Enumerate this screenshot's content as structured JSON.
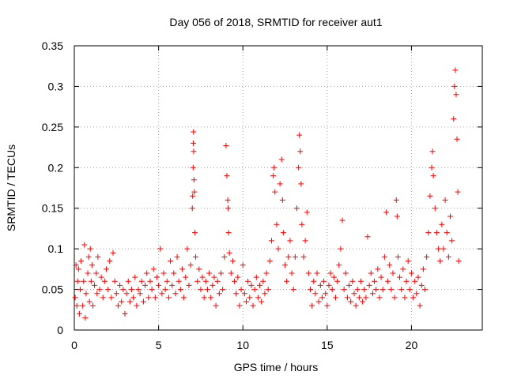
{
  "chart_data": {
    "type": "scatter",
    "title": "Day 056 of 2018, SRMTID for receiver aut1",
    "xlabel": "GPS time / hours",
    "ylabel": "SRMTID / TECUs",
    "xlim": [
      0,
      24.2
    ],
    "ylim": [
      0,
      0.35
    ],
    "xticks": [
      0,
      5,
      10,
      15,
      20
    ],
    "xtick_labels": [
      "0",
      "5",
      "10",
      "15",
      "20"
    ],
    "yticks": [
      0,
      0.05,
      0.1,
      0.15,
      0.2,
      0.25,
      0.3,
      0.35
    ],
    "ytick_labels": [
      "0",
      "0.05",
      "0.1",
      "0.15",
      "0.2",
      "0.25",
      "0.3",
      "0.35"
    ],
    "grid": true,
    "marker": "+",
    "color": "#ff0000",
    "series": [
      {
        "name": "aut1",
        "points": [
          [
            0.05,
            0.04
          ],
          [
            0.1,
            0.08
          ],
          [
            0.15,
            0.03
          ],
          [
            0.2,
            0.06
          ],
          [
            0.25,
            0.075
          ],
          [
            0.3,
            0.02
          ],
          [
            0.35,
            0.05
          ],
          [
            0.4,
            0.085
          ],
          [
            0.5,
            0.03
          ],
          [
            0.55,
            0.06
          ],
          [
            0.6,
            0.105
          ],
          [
            0.65,
            0.015
          ],
          [
            0.7,
            0.045
          ],
          [
            0.8,
            0.07
          ],
          [
            0.85,
            0.09
          ],
          [
            0.9,
            0.035
          ],
          [
            0.95,
            0.1
          ],
          [
            1.0,
            0.06
          ],
          [
            1.05,
            0.08
          ],
          [
            1.1,
            0.03
          ],
          [
            1.2,
            0.055
          ],
          [
            1.3,
            0.07
          ],
          [
            1.35,
            0.045
          ],
          [
            1.4,
            0.09
          ],
          [
            1.5,
            0.05
          ],
          [
            1.6,
            0.065
          ],
          [
            1.7,
            0.04
          ],
          [
            1.8,
            0.06
          ],
          [
            1.9,
            0.075
          ],
          [
            2.0,
            0.05
          ],
          [
            2.1,
            0.085
          ],
          [
            2.2,
            0.04
          ],
          [
            2.3,
            0.095
          ],
          [
            2.4,
            0.06
          ],
          [
            2.5,
            0.045
          ],
          [
            2.6,
            0.03
          ],
          [
            2.7,
            0.055
          ],
          [
            2.8,
            0.035
          ],
          [
            2.9,
            0.05
          ],
          [
            3.0,
            0.02
          ],
          [
            3.1,
            0.045
          ],
          [
            3.2,
            0.06
          ],
          [
            3.3,
            0.035
          ],
          [
            3.4,
            0.05
          ],
          [
            3.5,
            0.04
          ],
          [
            3.6,
            0.065
          ],
          [
            3.7,
            0.03
          ],
          [
            3.8,
            0.05
          ],
          [
            3.9,
            0.045
          ],
          [
            4.0,
            0.06
          ],
          [
            4.1,
            0.035
          ],
          [
            4.2,
            0.055
          ],
          [
            4.3,
            0.07
          ],
          [
            4.4,
            0.04
          ],
          [
            4.5,
            0.06
          ],
          [
            4.6,
            0.05
          ],
          [
            4.7,
            0.075
          ],
          [
            4.8,
            0.04
          ],
          [
            4.9,
            0.065
          ],
          [
            5.0,
            0.055
          ],
          [
            5.1,
            0.1
          ],
          [
            5.2,
            0.045
          ],
          [
            5.3,
            0.07
          ],
          [
            5.4,
            0.05
          ],
          [
            5.5,
            0.06
          ],
          [
            5.6,
            0.04
          ],
          [
            5.7,
            0.085
          ],
          [
            5.8,
            0.055
          ],
          [
            5.9,
            0.07
          ],
          [
            6.0,
            0.045
          ],
          [
            6.1,
            0.09
          ],
          [
            6.2,
            0.06
          ],
          [
            6.3,
            0.05
          ],
          [
            6.4,
            0.075
          ],
          [
            6.5,
            0.04
          ],
          [
            6.6,
            0.065
          ],
          [
            6.7,
            0.1
          ],
          [
            6.8,
            0.055
          ],
          [
            6.9,
            0.08
          ],
          [
            7.0,
            0.15
          ],
          [
            7.02,
            0.165
          ],
          [
            7.05,
            0.2
          ],
          [
            7.06,
            0.23
          ],
          [
            7.07,
            0.244
          ],
          [
            7.08,
            0.22
          ],
          [
            7.1,
            0.185
          ],
          [
            7.12,
            0.17
          ],
          [
            7.15,
            0.12
          ],
          [
            7.2,
            0.09
          ],
          [
            7.3,
            0.06
          ],
          [
            7.4,
            0.075
          ],
          [
            7.5,
            0.05
          ],
          [
            7.6,
            0.065
          ],
          [
            7.7,
            0.04
          ],
          [
            7.8,
            0.06
          ],
          [
            7.9,
            0.05
          ],
          [
            8.0,
            0.07
          ],
          [
            8.1,
            0.04
          ],
          [
            8.2,
            0.055
          ],
          [
            8.3,
            0.065
          ],
          [
            8.4,
            0.03
          ],
          [
            8.5,
            0.06
          ],
          [
            8.6,
            0.045
          ],
          [
            8.7,
            0.07
          ],
          [
            8.8,
            0.05
          ],
          [
            8.9,
            0.09
          ],
          [
            9.0,
            0.227
          ],
          [
            9.05,
            0.19
          ],
          [
            9.1,
            0.16
          ],
          [
            9.12,
            0.15
          ],
          [
            9.15,
            0.12
          ],
          [
            9.2,
            0.095
          ],
          [
            9.3,
            0.07
          ],
          [
            9.4,
            0.085
          ],
          [
            9.5,
            0.06
          ],
          [
            9.6,
            0.045
          ],
          [
            9.7,
            0.065
          ],
          [
            9.8,
            0.03
          ],
          [
            9.9,
            0.05
          ],
          [
            10.0,
            0.08
          ],
          [
            10.1,
            0.045
          ],
          [
            10.2,
            0.035
          ],
          [
            10.3,
            0.06
          ],
          [
            10.4,
            0.04
          ],
          [
            10.5,
            0.055
          ],
          [
            10.6,
            0.03
          ],
          [
            10.7,
            0.05
          ],
          [
            10.8,
            0.065
          ],
          [
            10.9,
            0.04
          ],
          [
            11.0,
            0.055
          ],
          [
            11.1,
            0.035
          ],
          [
            11.2,
            0.06
          ],
          [
            11.3,
            0.045
          ],
          [
            11.4,
            0.07
          ],
          [
            11.5,
            0.05
          ],
          [
            11.6,
            0.085
          ],
          [
            11.7,
            0.11
          ],
          [
            11.8,
            0.19
          ],
          [
            11.85,
            0.2
          ],
          [
            11.9,
            0.17
          ],
          [
            12.0,
            0.13
          ],
          [
            12.1,
            0.1
          ],
          [
            12.2,
            0.18
          ],
          [
            12.3,
            0.21
          ],
          [
            12.35,
            0.16
          ],
          [
            12.4,
            0.12
          ],
          [
            12.5,
            0.08
          ],
          [
            12.6,
            0.06
          ],
          [
            12.7,
            0.09
          ],
          [
            12.8,
            0.11
          ],
          [
            12.9,
            0.07
          ],
          [
            13.0,
            0.05
          ],
          [
            13.1,
            0.09
          ],
          [
            13.2,
            0.15
          ],
          [
            13.3,
            0.2
          ],
          [
            13.35,
            0.24
          ],
          [
            13.4,
            0.22
          ],
          [
            13.45,
            0.18
          ],
          [
            13.5,
            0.13
          ],
          [
            13.6,
            0.09
          ],
          [
            13.7,
            0.11
          ],
          [
            13.8,
            0.145
          ],
          [
            13.9,
            0.07
          ],
          [
            14.0,
            0.05
          ],
          [
            14.1,
            0.03
          ],
          [
            14.2,
            0.06
          ],
          [
            14.3,
            0.045
          ],
          [
            14.4,
            0.07
          ],
          [
            14.5,
            0.035
          ],
          [
            14.6,
            0.055
          ],
          [
            14.7,
            0.04
          ],
          [
            14.8,
            0.06
          ],
          [
            14.9,
            0.045
          ],
          [
            15.0,
            0.03
          ],
          [
            15.1,
            0.055
          ],
          [
            15.2,
            0.07
          ],
          [
            15.3,
            0.05
          ],
          [
            15.4,
            0.065
          ],
          [
            15.5,
            0.04
          ],
          [
            15.6,
            0.06
          ],
          [
            15.7,
            0.08
          ],
          [
            15.8,
            0.1
          ],
          [
            15.9,
            0.135
          ],
          [
            16.0,
            0.05
          ],
          [
            16.1,
            0.07
          ],
          [
            16.2,
            0.04
          ],
          [
            16.3,
            0.055
          ],
          [
            16.4,
            0.035
          ],
          [
            16.5,
            0.06
          ],
          [
            16.6,
            0.045
          ],
          [
            16.7,
            0.03
          ],
          [
            16.8,
            0.05
          ],
          [
            16.9,
            0.04
          ],
          [
            17.0,
            0.06
          ],
          [
            17.1,
            0.035
          ],
          [
            17.2,
            0.05
          ],
          [
            17.3,
            0.04
          ],
          [
            17.4,
            0.115
          ],
          [
            17.5,
            0.055
          ],
          [
            17.6,
            0.07
          ],
          [
            17.7,
            0.045
          ],
          [
            17.8,
            0.06
          ],
          [
            17.9,
            0.05
          ],
          [
            18.0,
            0.075
          ],
          [
            18.1,
            0.04
          ],
          [
            18.2,
            0.065
          ],
          [
            18.3,
            0.05
          ],
          [
            18.4,
            0.09
          ],
          [
            18.5,
            0.145
          ],
          [
            18.6,
            0.06
          ],
          [
            18.7,
            0.08
          ],
          [
            18.8,
            0.05
          ],
          [
            18.9,
            0.07
          ],
          [
            19.0,
            0.04
          ],
          [
            19.1,
            0.16
          ],
          [
            19.15,
            0.14
          ],
          [
            19.2,
            0.09
          ],
          [
            19.3,
            0.065
          ],
          [
            19.4,
            0.05
          ],
          [
            19.5,
            0.075
          ],
          [
            19.6,
            0.04
          ],
          [
            19.7,
            0.06
          ],
          [
            19.8,
            0.085
          ],
          [
            19.9,
            0.05
          ],
          [
            20.0,
            0.07
          ],
          [
            20.1,
            0.04
          ],
          [
            20.2,
            0.06
          ],
          [
            20.3,
            0.045
          ],
          [
            20.4,
            0.065
          ],
          [
            20.5,
            0.03
          ],
          [
            20.6,
            0.055
          ],
          [
            20.7,
            0.075
          ],
          [
            20.8,
            0.05
          ],
          [
            20.9,
            0.09
          ],
          [
            21.0,
            0.12
          ],
          [
            21.1,
            0.165
          ],
          [
            21.2,
            0.2
          ],
          [
            21.25,
            0.22
          ],
          [
            21.3,
            0.19
          ],
          [
            21.4,
            0.15
          ],
          [
            21.5,
            0.12
          ],
          [
            21.6,
            0.1
          ],
          [
            21.7,
            0.085
          ],
          [
            21.8,
            0.13
          ],
          [
            21.9,
            0.1
          ],
          [
            22.0,
            0.16
          ],
          [
            22.1,
            0.12
          ],
          [
            22.2,
            0.09
          ],
          [
            22.3,
            0.14
          ],
          [
            22.4,
            0.11
          ],
          [
            22.5,
            0.26
          ],
          [
            22.55,
            0.3
          ],
          [
            22.6,
            0.32
          ],
          [
            22.65,
            0.29
          ],
          [
            22.7,
            0.235
          ],
          [
            22.75,
            0.17
          ],
          [
            22.8,
            0.085
          ]
        ]
      }
    ]
  }
}
